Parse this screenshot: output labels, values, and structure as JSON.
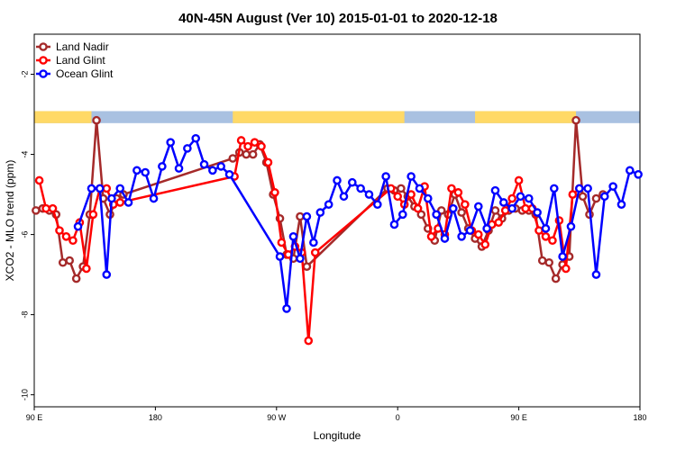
{
  "chart_data": {
    "type": "line",
    "title": "40N-45N August (Ver 10)   2015-01-01 to 2020-12-18",
    "xlabel": "Longitude",
    "ylabel": "XCO2 - MLO trend (ppm)",
    "xlim": [
      0,
      360
    ],
    "ylim": [
      -10.3,
      -1.0
    ],
    "x_ticks": [
      {
        "value": 0,
        "label": "90 E"
      },
      {
        "value": 72,
        "label": "180"
      },
      {
        "value": 144,
        "label": "90 W"
      },
      {
        "value": 216,
        "label": "0"
      },
      {
        "value": 288,
        "label": "90 E"
      },
      {
        "value": 360,
        "label": "180"
      }
    ],
    "y_ticks": [
      {
        "value": -2,
        "label": "-2"
      },
      {
        "value": -4,
        "label": "-4"
      },
      {
        "value": -6,
        "label": "-6"
      },
      {
        "value": -8,
        "label": "-8"
      },
      {
        "value": -10,
        "label": "-10"
      }
    ],
    "legend_position": "top-left",
    "grid": false,
    "land_ocean_strip": {
      "y_range": [
        -3.22,
        -2.92
      ],
      "land_color": "#FFD966",
      "ocean_color": "#A9C1E1",
      "land_segments": [
        [
          0,
          34
        ],
        [
          118,
          220
        ],
        [
          262,
          322
        ]
      ]
    },
    "series": [
      {
        "name": "Land Nadir",
        "color": "#A52A2A",
        "x": [
          1,
          5,
          9,
          13,
          17,
          21,
          25,
          29,
          33,
          37,
          41,
          45,
          49,
          53,
          118,
          122,
          126,
          130,
          134,
          138,
          142,
          146,
          150,
          154,
          158,
          162,
          210,
          214,
          218,
          222,
          226,
          230,
          234,
          238,
          242,
          246,
          250,
          254,
          258,
          262,
          266,
          270,
          274,
          278,
          282,
          286,
          290,
          294,
          298,
          302,
          306,
          310,
          314,
          318,
          322,
          326,
          330,
          334,
          338
        ],
        "y": [
          -5.4,
          -5.35,
          -5.4,
          -5.5,
          -6.7,
          -6.65,
          -7.1,
          -6.8,
          -5.5,
          -3.15,
          -5.1,
          -5.5,
          -5.1,
          -5.0,
          -4.1,
          -3.95,
          -4.0,
          -4.0,
          -3.75,
          -4.2,
          -5.0,
          -5.6,
          -6.5,
          -6.6,
          -5.55,
          -6.8,
          -4.85,
          -4.9,
          -4.85,
          -5.05,
          -5.3,
          -5.5,
          -5.85,
          -6.15,
          -5.4,
          -5.5,
          -5.0,
          -5.45,
          -5.85,
          -6.1,
          -6.3,
          -5.9,
          -5.4,
          -5.6,
          -5.4,
          -5.35,
          -5.4,
          -5.4,
          -5.5,
          -6.65,
          -6.7,
          -7.1,
          -6.75,
          -6.55,
          -3.15,
          -5.05,
          -5.5,
          -5.1,
          -5.0
        ],
        "y_extra": {
          "x": 163,
          "y": -3.95
        }
      },
      {
        "name": "Land Glint",
        "color": "#FF0000",
        "x": [
          3,
          7,
          11,
          15,
          19,
          23,
          27,
          31,
          35,
          39,
          43,
          47,
          51,
          119,
          123,
          127,
          131,
          135,
          139,
          143,
          147,
          151,
          155,
          159,
          163,
          167,
          212,
          216,
          220,
          224,
          228,
          232,
          236,
          240,
          244,
          248,
          252,
          256,
          260,
          264,
          268,
          272,
          276,
          280,
          284,
          288,
          292,
          296,
          300,
          304,
          308,
          312,
          316,
          320,
          324
        ],
        "y": [
          -4.65,
          -5.35,
          -5.35,
          -5.9,
          -6.05,
          -6.15,
          -5.7,
          -6.85,
          -5.5,
          -4.85,
          -4.85,
          -5.25,
          -5.2,
          -4.55,
          -3.65,
          -3.8,
          -3.7,
          -3.8,
          -4.2,
          -4.95,
          -6.2,
          -6.5,
          -6.3,
          -6.45,
          -8.65,
          -6.45,
          -4.85,
          -5.05,
          -5.25,
          -5.0,
          -5.35,
          -4.8,
          -6.05,
          -5.85,
          -6.0,
          -4.85,
          -4.95,
          -5.25,
          -5.9,
          -6.0,
          -6.25,
          -5.75,
          -5.7,
          -5.4,
          -5.1,
          -4.65,
          -5.35,
          -5.35,
          -5.9,
          -6.05,
          -6.15,
          -5.65,
          -6.85,
          -5.0,
          -4.85
        ],
        "y_extra": {
          "x": 163,
          "y": -8.65
        }
      },
      {
        "name": "Ocean Glint",
        "color": "#0000FF",
        "x": [
          26,
          34,
          39,
          43,
          46,
          51,
          56,
          61,
          66,
          71,
          76,
          81,
          86,
          91,
          96,
          101,
          106,
          111,
          116,
          146,
          150,
          154,
          158,
          162,
          166,
          170,
          175,
          180,
          184,
          189,
          194,
          199,
          204,
          209,
          214,
          219,
          224,
          229,
          234,
          239,
          244,
          249,
          254,
          259,
          264,
          269,
          274,
          279,
          284,
          289,
          294,
          299,
          304,
          309,
          314,
          319,
          324,
          329,
          334,
          339,
          344,
          349,
          354,
          359
        ],
        "y": [
          -5.8,
          -4.85,
          -4.85,
          -7.0,
          -5.1,
          -4.85,
          -5.2,
          -4.4,
          -4.45,
          -5.1,
          -4.3,
          -3.7,
          -4.35,
          -3.85,
          -3.6,
          -4.25,
          -4.4,
          -4.3,
          -4.5,
          -6.55,
          -7.85,
          -6.05,
          -6.6,
          -5.55,
          -6.2,
          -5.45,
          -5.25,
          -4.65,
          -5.05,
          -4.7,
          -4.85,
          -5.0,
          -5.25,
          -4.55,
          -5.75,
          -5.5,
          -4.55,
          -4.85,
          -5.1,
          -5.5,
          -6.1,
          -5.35,
          -6.05,
          -5.9,
          -5.3,
          -5.85,
          -4.9,
          -5.2,
          -5.35,
          -5.05,
          -5.1,
          -5.45,
          -5.85,
          -4.85,
          -6.55,
          -5.8,
          -4.85,
          -4.85,
          -7.0,
          -5.05,
          -4.8,
          -5.25,
          -4.4,
          -4.5
        ]
      }
    ]
  }
}
